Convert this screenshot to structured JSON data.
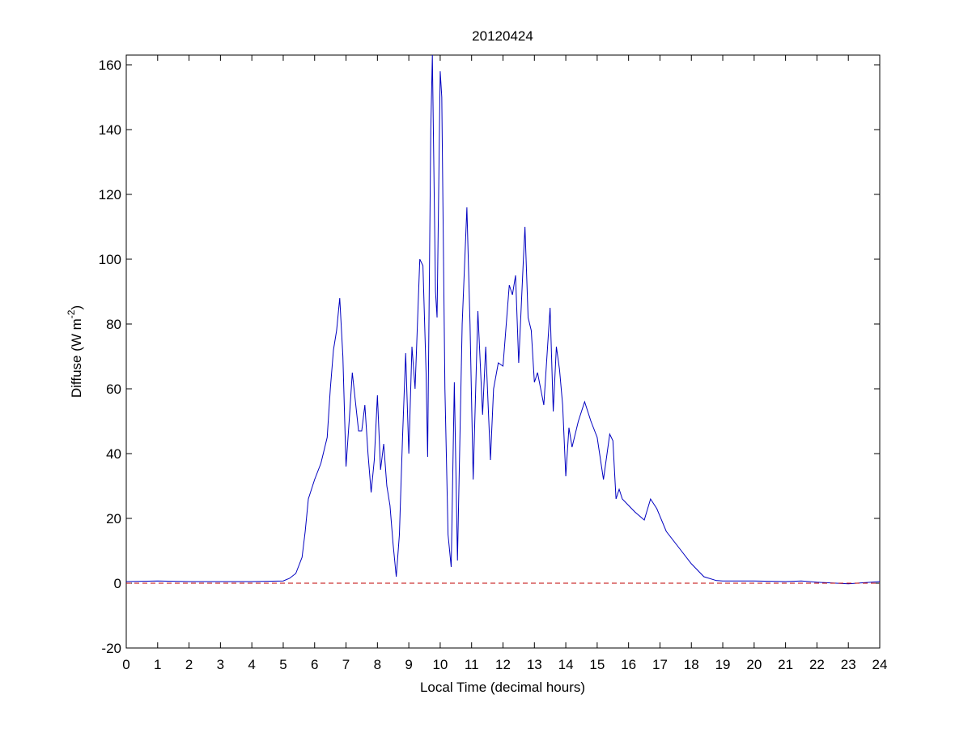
{
  "chart_data": {
    "type": "line",
    "title": "20120424",
    "xlabel": "Local Time (decimal hours)",
    "ylabel": [
      "Diffuse (W m",
      "-2",
      ")"
    ],
    "xlim": [
      0,
      24
    ],
    "xticks": [
      0,
      1,
      2,
      3,
      4,
      5,
      6,
      7,
      8,
      9,
      10,
      11,
      12,
      13,
      14,
      15,
      16,
      17,
      18,
      19,
      20,
      21,
      22,
      23,
      24
    ],
    "ylim": [
      -20,
      163
    ],
    "yticks": [
      -20,
      0,
      20,
      40,
      60,
      80,
      100,
      120,
      140,
      160
    ],
    "reference_line": {
      "value": 0,
      "color": "#c00000",
      "dashed": true
    },
    "series": [
      {
        "color": "#0000c0",
        "x": [
          0,
          1,
          2,
          3,
          4,
          5,
          5.2,
          5.4,
          5.6,
          5.7,
          5.8,
          6.0,
          6.2,
          6.4,
          6.5,
          6.6,
          6.7,
          6.8,
          6.9,
          7.0,
          7.1,
          7.2,
          7.3,
          7.4,
          7.5,
          7.6,
          7.7,
          7.8,
          7.9,
          8.0,
          8.1,
          8.2,
          8.3,
          8.4,
          8.5,
          8.6,
          8.7,
          8.8,
          8.9,
          9.0,
          9.1,
          9.2,
          9.35,
          9.45,
          9.55,
          9.6,
          9.7,
          9.75,
          9.85,
          9.9,
          10.0,
          10.05,
          10.15,
          10.25,
          10.35,
          10.45,
          10.55,
          10.7,
          10.85,
          10.95,
          11.05,
          11.2,
          11.35,
          11.45,
          11.6,
          11.7,
          11.85,
          12.0,
          12.2,
          12.3,
          12.4,
          12.5,
          12.65,
          12.7,
          12.8,
          12.9,
          13.0,
          13.1,
          13.3,
          13.5,
          13.6,
          13.7,
          13.8,
          13.9,
          14.0,
          14.1,
          14.2,
          14.4,
          14.6,
          14.8,
          15.0,
          15.2,
          15.4,
          15.5,
          15.6,
          15.7,
          15.8,
          16.0,
          16.2,
          16.5,
          16.7,
          16.9,
          17.2,
          17.6,
          18.0,
          18.4,
          18.8,
          19.0,
          20,
          21,
          21.5,
          22,
          23,
          24
        ],
        "values": [
          0.5,
          0.7,
          0.5,
          0.5,
          0.5,
          0.7,
          1.5,
          3,
          8,
          16,
          26,
          32,
          37,
          45,
          60,
          72,
          78,
          88,
          70,
          36,
          50,
          65,
          56,
          47,
          47,
          55,
          40,
          28,
          38,
          58,
          35,
          43,
          30,
          24,
          12,
          2,
          15,
          45,
          71,
          40,
          73,
          60,
          100,
          98,
          65,
          39,
          140,
          163,
          90,
          82,
          158,
          150,
          60,
          15,
          5,
          62,
          7,
          80,
          116,
          80,
          32,
          84,
          52,
          73,
          38,
          60,
          68,
          67,
          92,
          89,
          95,
          68,
          100,
          110,
          82,
          78,
          62,
          65,
          55,
          85,
          53,
          73,
          66,
          55,
          33,
          48,
          42,
          50,
          56,
          50,
          45,
          32,
          46,
          44,
          26,
          29,
          26,
          24,
          22,
          19.5,
          26,
          23,
          16,
          11,
          6,
          2,
          0.8,
          0.7,
          0.7,
          0.5,
          0.7,
          0.3,
          -0.2,
          0.5
        ]
      }
    ]
  }
}
